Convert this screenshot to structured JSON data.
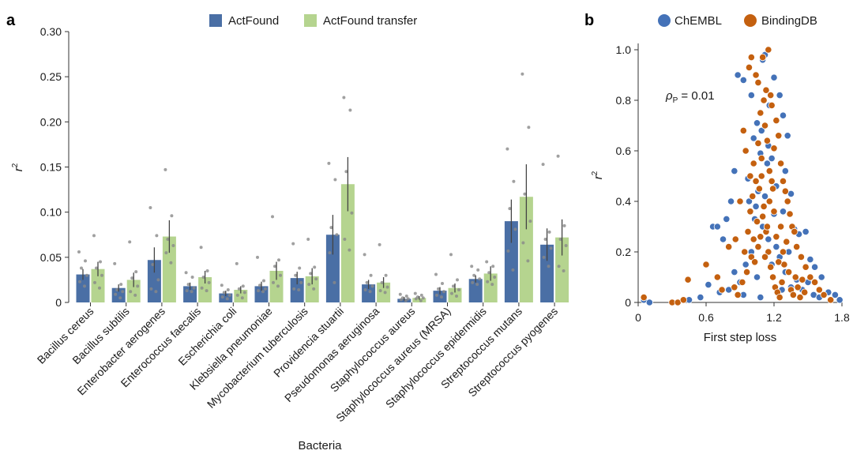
{
  "chart_data": [
    {
      "type": "bar",
      "panel_label": "a",
      "title": "",
      "xlabel": "Bacteria",
      "ylabel_symbol": "r",
      "ylabel_superscript": "2",
      "ylim": [
        0,
        0.3
      ],
      "yticks": [
        0,
        0.05,
        0.1,
        0.15,
        0.2,
        0.25,
        0.3
      ],
      "ytick_labels": [
        "0",
        "0.05",
        "0.10",
        "0.15",
        "0.20",
        "0.25",
        "0.30"
      ],
      "legend_position": "top-center",
      "colors": {
        "ActFound": "#4a6fa5",
        "ActFound transfer": "#b5d48f",
        "error": "#444444",
        "points": "#888888"
      },
      "categories": [
        "Bacillus cereus",
        "Bacillus subtilis",
        "Enterobacter aerogenes",
        "Enterococcus faecalis",
        "Escherichia coli",
        "Klebsiella pneumoniae",
        "Mycobacterium tuberculosis",
        "Providencia stuartii",
        "Pseudomonas aeruginosa",
        "Staphylococcus aureus",
        "Staphylococcus aureus (MRSA)",
        "Staphylococcus epidermidis",
        "Streptococcus mutans",
        "Streptococcus pyogenes"
      ],
      "series": [
        {
          "name": "ActFound",
          "values": [
            0.031,
            0.016,
            0.047,
            0.018,
            0.01,
            0.018,
            0.027,
            0.075,
            0.02,
            0.004,
            0.013,
            0.026,
            0.09,
            0.064
          ],
          "errors": [
            0.006,
            0.004,
            0.014,
            0.004,
            0.003,
            0.005,
            0.007,
            0.022,
            0.005,
            0.002,
            0.004,
            0.004,
            0.024,
            0.018
          ],
          "points": [
            [
              0.056,
              0.046,
              0.038,
              0.03,
              0.023,
              0.018
            ],
            [
              0.043,
              0.02,
              0.014,
              0.012,
              0.009,
              0.005
            ],
            [
              0.105,
              0.074,
              0.042,
              0.025,
              0.015,
              0.012
            ],
            [
              0.033,
              0.028,
              0.02,
              0.016,
              0.013,
              0.012
            ],
            [
              0.019,
              0.014,
              0.011,
              0.008,
              0.006,
              0.004
            ],
            [
              0.05,
              0.024,
              0.019,
              0.015,
              0.013,
              0.012
            ],
            [
              0.065,
              0.038,
              0.03,
              0.022,
              0.015,
              0.014
            ],
            [
              0.154,
              0.136,
              0.083,
              0.075,
              0.055,
              0.022
            ],
            [
              0.053,
              0.03,
              0.022,
              0.018,
              0.014,
              0.012
            ],
            [
              0.009,
              0.007,
              0.005,
              0.004,
              0.003,
              0.002
            ],
            [
              0.031,
              0.021,
              0.015,
              0.012,
              0.008,
              0.006
            ],
            [
              0.04,
              0.036,
              0.03,
              0.026,
              0.022,
              0.02
            ],
            [
              0.17,
              0.134,
              0.104,
              0.081,
              0.057,
              0.036
            ],
            [
              0.153,
              0.078,
              0.07,
              0.06,
              0.05,
              0.04
            ]
          ]
        },
        {
          "name": "ActFound transfer",
          "values": [
            0.037,
            0.025,
            0.073,
            0.028,
            0.014,
            0.035,
            0.029,
            0.131,
            0.022,
            0.005,
            0.016,
            0.032,
            0.117,
            0.072
          ],
          "errors": [
            0.008,
            0.008,
            0.018,
            0.007,
            0.004,
            0.01,
            0.009,
            0.03,
            0.006,
            0.002,
            0.005,
            0.008,
            0.036,
            0.02
          ],
          "points": [
            [
              0.074,
              0.045,
              0.038,
              0.03,
              0.022,
              0.016
            ],
            [
              0.067,
              0.034,
              0.027,
              0.018,
              0.012,
              0.008
            ],
            [
              0.147,
              0.096,
              0.07,
              0.063,
              0.055,
              0.044
            ],
            [
              0.061,
              0.035,
              0.028,
              0.022,
              0.016,
              0.013
            ],
            [
              0.043,
              0.018,
              0.015,
              0.011,
              0.008,
              0.005
            ],
            [
              0.095,
              0.047,
              0.04,
              0.03,
              0.022,
              0.018
            ],
            [
              0.07,
              0.039,
              0.032,
              0.026,
              0.02,
              0.015
            ],
            [
              0.227,
              0.213,
              0.145,
              0.099,
              0.07,
              0.058
            ],
            [
              0.064,
              0.03,
              0.022,
              0.017,
              0.013,
              0.011
            ],
            [
              0.01,
              0.008,
              0.006,
              0.005,
              0.004,
              0.002
            ],
            [
              0.053,
              0.025,
              0.018,
              0.014,
              0.01,
              0.007
            ],
            [
              0.045,
              0.04,
              0.033,
              0.028,
              0.023,
              0.02
            ],
            [
              0.253,
              0.194,
              0.12,
              0.09,
              0.066,
              0.046
            ],
            [
              0.162,
              0.085,
              0.07,
              0.063,
              0.04,
              0.035
            ]
          ]
        }
      ]
    },
    {
      "type": "scatter",
      "panel_label": "b",
      "xlabel": "First step loss",
      "ylabel_symbol": "r",
      "ylabel_superscript": "2",
      "xlim": [
        0,
        1.8
      ],
      "ylim": [
        0,
        1.0
      ],
      "xticks": [
        0,
        0.6,
        1.2,
        1.8
      ],
      "xtick_labels": [
        "0",
        "0.6",
        "1.2",
        "1.8"
      ],
      "yticks": [
        0,
        0.2,
        0.4,
        0.6,
        0.8,
        1.0
      ],
      "ytick_labels": [
        "0",
        "0.2",
        "0.4",
        "0.6",
        "0.8",
        "1.0"
      ],
      "legend_position": "top",
      "annotation": {
        "symbol": "ρ",
        "subscript": "P",
        "text": " = 0.01"
      },
      "series": [
        {
          "name": "ChEMBL",
          "color": "#4472b8",
          "points": [
            [
              0.05,
              0.01
            ],
            [
              0.1,
              0.0
            ],
            [
              0.45,
              0.01
            ],
            [
              0.55,
              0.02
            ],
            [
              0.62,
              0.07
            ],
            [
              0.66,
              0.3
            ],
            [
              0.7,
              0.3
            ],
            [
              0.75,
              0.25
            ],
            [
              0.78,
              0.33
            ],
            [
              0.82,
              0.4
            ],
            [
              0.85,
              0.52
            ],
            [
              0.88,
              0.9
            ],
            [
              0.93,
              0.88
            ],
            [
              0.97,
              0.49
            ],
            [
              1.0,
              0.82
            ],
            [
              1.02,
              0.65
            ],
            [
              1.05,
              0.71
            ],
            [
              1.06,
              0.44
            ],
            [
              1.08,
              0.59
            ],
            [
              1.1,
              0.96
            ],
            [
              1.12,
              0.98
            ],
            [
              1.15,
              0.62
            ],
            [
              1.18,
              0.57
            ],
            [
              1.2,
              0.89
            ],
            [
              1.22,
              0.46
            ],
            [
              1.25,
              0.82
            ],
            [
              1.28,
              0.74
            ],
            [
              1.3,
              0.52
            ],
            [
              1.32,
              0.66
            ],
            [
              1.35,
              0.43
            ],
            [
              1.38,
              0.29
            ],
            [
              1.42,
              0.27
            ],
            [
              1.48,
              0.28
            ],
            [
              1.52,
              0.17
            ],
            [
              1.56,
              0.14
            ],
            [
              1.62,
              0.1
            ],
            [
              1.68,
              0.04
            ],
            [
              1.74,
              0.03
            ],
            [
              1.78,
              0.01
            ],
            [
              0.95,
              0.15
            ],
            [
              1.0,
              0.2
            ],
            [
              1.05,
              0.1
            ],
            [
              1.1,
              0.3
            ],
            [
              1.15,
              0.25
            ],
            [
              1.2,
              0.35
            ],
            [
              1.25,
              0.18
            ],
            [
              1.3,
              0.12
            ],
            [
              0.9,
              0.08
            ],
            [
              0.85,
              0.12
            ],
            [
              1.35,
              0.06
            ],
            [
              1.4,
              0.09
            ],
            [
              1.45,
              0.05
            ],
            [
              1.5,
              0.08
            ],
            [
              1.55,
              0.03
            ],
            [
              1.6,
              0.02
            ],
            [
              0.98,
              0.4
            ],
            [
              1.04,
              0.38
            ],
            [
              1.12,
              0.42
            ],
            [
              1.18,
              0.15
            ],
            [
              1.22,
              0.22
            ],
            [
              1.27,
              0.05
            ],
            [
              0.93,
              0.03
            ],
            [
              1.08,
              0.02
            ],
            [
              1.14,
              0.55
            ],
            [
              1.16,
              0.78
            ],
            [
              1.09,
              0.68
            ],
            [
              1.03,
              0.33
            ],
            [
              1.28,
              0.36
            ],
            [
              1.33,
              0.2
            ],
            [
              0.8,
              0.05
            ],
            [
              0.72,
              0.04
            ]
          ]
        },
        {
          "name": "BindingDB",
          "color": "#c4600f",
          "points": [
            [
              0.05,
              0.02
            ],
            [
              0.3,
              0.0
            ],
            [
              0.35,
              0.0
            ],
            [
              0.4,
              0.01
            ],
            [
              0.44,
              0.09
            ],
            [
              0.6,
              0.15
            ],
            [
              0.7,
              0.1
            ],
            [
              0.74,
              0.05
            ],
            [
              0.8,
              0.22
            ],
            [
              0.86,
              0.25
            ],
            [
              0.9,
              0.4
            ],
            [
              0.93,
              0.68
            ],
            [
              0.95,
              0.6
            ],
            [
              0.98,
              0.93
            ],
            [
              1.0,
              0.97
            ],
            [
              1.02,
              0.55
            ],
            [
              1.04,
              0.9
            ],
            [
              1.06,
              0.87
            ],
            [
              1.08,
              0.75
            ],
            [
              1.1,
              0.97
            ],
            [
              1.12,
              0.7
            ],
            [
              1.13,
              0.84
            ],
            [
              1.15,
              1.0
            ],
            [
              1.17,
              0.82
            ],
            [
              1.18,
              0.78
            ],
            [
              1.2,
              0.61
            ],
            [
              1.22,
              0.72
            ],
            [
              1.24,
              0.66
            ],
            [
              1.26,
              0.55
            ],
            [
              1.28,
              0.48
            ],
            [
              1.3,
              0.44
            ],
            [
              1.32,
              0.4
            ],
            [
              1.34,
              0.35
            ],
            [
              1.36,
              0.3
            ],
            [
              1.38,
              0.28
            ],
            [
              1.4,
              0.22
            ],
            [
              1.44,
              0.18
            ],
            [
              1.48,
              0.14
            ],
            [
              1.52,
              0.1
            ],
            [
              1.56,
              0.08
            ],
            [
              1.6,
              0.05
            ],
            [
              1.64,
              0.03
            ],
            [
              1.7,
              0.01
            ],
            [
              0.85,
              0.06
            ],
            [
              0.88,
              0.03
            ],
            [
              0.92,
              0.08
            ],
            [
              0.96,
              0.12
            ],
            [
              1.0,
              0.18
            ],
            [
              1.02,
              0.25
            ],
            [
              1.05,
              0.32
            ],
            [
              1.07,
              0.45
            ],
            [
              1.09,
              0.5
            ],
            [
              1.11,
              0.38
            ],
            [
              1.13,
              0.28
            ],
            [
              1.15,
              0.2
            ],
            [
              1.17,
              0.14
            ],
            [
              1.19,
              0.1
            ],
            [
              1.21,
              0.06
            ],
            [
              1.23,
              0.04
            ],
            [
              1.25,
              0.02
            ],
            [
              1.27,
              0.08
            ],
            [
              1.29,
              0.15
            ],
            [
              1.31,
              0.24
            ],
            [
              1.33,
              0.12
            ],
            [
              1.35,
              0.05
            ],
            [
              1.37,
              0.03
            ],
            [
              1.39,
              0.1
            ],
            [
              1.41,
              0.06
            ],
            [
              1.43,
              0.02
            ],
            [
              1.45,
              0.09
            ],
            [
              1.47,
              0.04
            ],
            [
              0.94,
              0.2
            ],
            [
              0.97,
              0.28
            ],
            [
              0.99,
              0.36
            ],
            [
              1.01,
              0.42
            ],
            [
              1.03,
              0.16
            ],
            [
              1.06,
              0.22
            ],
            [
              1.08,
              0.26
            ],
            [
              1.1,
              0.34
            ],
            [
              1.12,
              0.18
            ],
            [
              1.14,
              0.3
            ],
            [
              1.16,
              0.4
            ],
            [
              1.18,
              0.48
            ],
            [
              1.2,
              0.36
            ],
            [
              1.22,
              0.26
            ],
            [
              1.24,
              0.16
            ],
            [
              1.26,
              0.3
            ],
            [
              1.28,
              0.2
            ],
            [
              1.06,
              0.63
            ],
            [
              1.09,
              0.57
            ],
            [
              1.11,
              0.8
            ],
            [
              1.14,
              0.64
            ],
            [
              1.16,
              0.52
            ],
            [
              1.19,
              0.45
            ],
            [
              1.04,
              0.48
            ],
            [
              0.99,
              0.5
            ]
          ]
        }
      ]
    }
  ]
}
